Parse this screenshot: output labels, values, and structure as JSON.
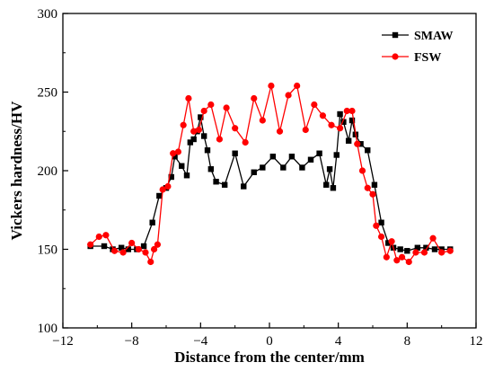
{
  "chart_data": {
    "type": "line",
    "title": "",
    "xlabel": "Distance from the center/mm",
    "ylabel": "Vickers hardness/HV",
    "xlim": [
      -12,
      12
    ],
    "ylim": [
      100,
      300
    ],
    "xticks": [
      -12,
      -8,
      -4,
      0,
      4,
      8,
      12
    ],
    "xtick_labels": [
      "−12",
      "−8",
      "−4",
      "0",
      "4",
      "8",
      "12"
    ],
    "yticks": [
      100,
      150,
      200,
      250,
      300
    ],
    "ytick_labels": [
      "100",
      "150",
      "200",
      "250",
      "300"
    ],
    "grid": false,
    "legend": "top-right",
    "series": [
      {
        "name": "SMAW",
        "color": "#000000",
        "marker": "square",
        "x": [
          -10.4,
          -9.6,
          -9.1,
          -8.6,
          -8.2,
          -7.7,
          -7.3,
          -6.8,
          -6.4,
          -6.0,
          -5.7,
          -5.5,
          -5.1,
          -4.8,
          -4.6,
          -4.4,
          -4.2,
          -4.0,
          -3.8,
          -3.6,
          -3.4,
          -3.1,
          -2.6,
          -2.0,
          -1.5,
          -0.9,
          -0.4,
          0.2,
          0.8,
          1.3,
          1.9,
          2.4,
          2.9,
          3.3,
          3.5,
          3.7,
          3.9,
          4.1,
          4.3,
          4.6,
          4.8,
          5.0,
          5.3,
          5.7,
          6.1,
          6.5,
          6.9,
          7.2,
          7.6,
          8.0,
          8.6,
          9.1,
          9.6,
          10.0,
          10.5
        ],
        "y": [
          152,
          152,
          150,
          151,
          150,
          150,
          152,
          167,
          184,
          189,
          196,
          209,
          203,
          197,
          218,
          220,
          225,
          234,
          222,
          213,
          201,
          193,
          191,
          211,
          190,
          199,
          202,
          209,
          202,
          209,
          202,
          207,
          211,
          191,
          201,
          189,
          210,
          236,
          231,
          219,
          232,
          223,
          217,
          213,
          191,
          167,
          154,
          151,
          150,
          149,
          151,
          151,
          150,
          150,
          150
        ]
      },
      {
        "name": "FSW",
        "color": "#ff0000",
        "marker": "circle",
        "x": [
          -10.4,
          -9.9,
          -9.5,
          -9.0,
          -8.5,
          -8.0,
          -7.6,
          -7.2,
          -6.9,
          -6.7,
          -6.5,
          -6.2,
          -5.9,
          -5.6,
          -5.3,
          -5.0,
          -4.7,
          -4.4,
          -4.1,
          -3.8,
          -3.4,
          -2.9,
          -2.5,
          -2.0,
          -1.4,
          -0.9,
          -0.4,
          0.1,
          0.6,
          1.1,
          1.6,
          2.1,
          2.6,
          3.1,
          3.6,
          4.1,
          4.5,
          4.8,
          5.1,
          5.4,
          5.7,
          6.0,
          6.2,
          6.5,
          6.8,
          7.1,
          7.4,
          7.7,
          8.1,
          8.5,
          9.0,
          9.5,
          10.0,
          10.5
        ],
        "y": [
          153,
          158,
          159,
          149,
          148,
          154,
          150,
          148,
          142,
          150,
          153,
          188,
          190,
          211,
          212,
          229,
          246,
          225,
          226,
          238,
          242,
          220,
          240,
          227,
          218,
          246,
          232,
          254,
          225,
          248,
          254,
          226,
          242,
          235,
          229,
          227,
          238,
          238,
          217,
          200,
          189,
          185,
          165,
          158,
          145,
          155,
          143,
          145,
          142,
          148,
          148,
          157,
          148,
          149
        ]
      }
    ]
  }
}
